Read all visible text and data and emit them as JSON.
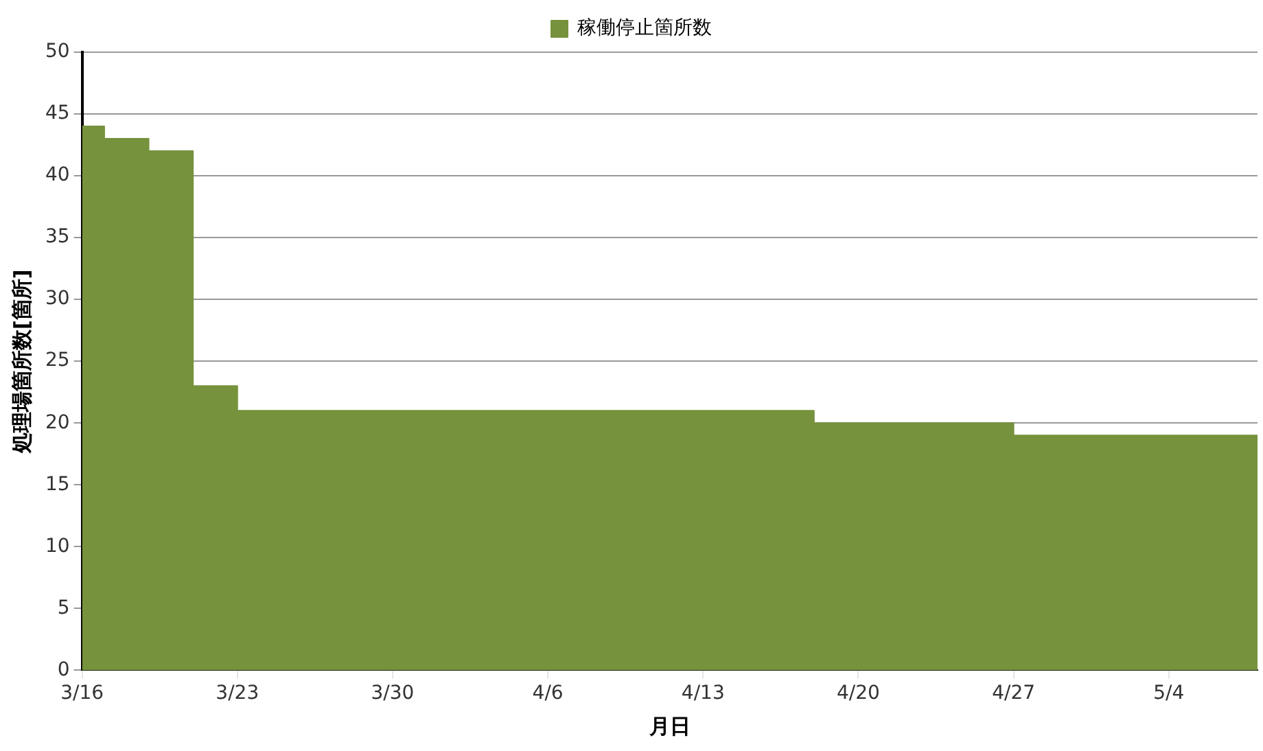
{
  "chart_data": {
    "type": "area",
    "xlabel": "月日",
    "ylabel": "処理場箇所数[箇所]",
    "x": [
      "--03-16",
      "--03-17",
      "--03-17",
      "--03-19",
      "--03-19",
      "--03-21",
      "--03-21",
      "--03-23",
      "--03-23",
      "--04-18",
      "--04-18",
      "--04-27",
      "--04-27",
      "--05-08"
    ],
    "series": [
      {
        "name": "稼働停止箇所数",
        "color": "#76923c",
        "values": [
          44,
          44,
          43,
          43,
          42,
          42,
          23,
          23,
          21,
          21,
          20,
          20,
          19,
          19
        ]
      }
    ],
    "xlim": [
      "--03-16",
      "--05-08"
    ],
    "xticks": [
      {
        "value": "--03-16",
        "label": "3/16"
      },
      {
        "value": "--03-23",
        "label": "3/23"
      },
      {
        "value": "--03-30",
        "label": "3/30"
      },
      {
        "value": "--04-06",
        "label": "4/6"
      },
      {
        "value": "--04-13",
        "label": "4/13"
      },
      {
        "value": "--04-20",
        "label": "4/20"
      },
      {
        "value": "--04-27",
        "label": "4/27"
      },
      {
        "value": "--05-04",
        "label": "5/4"
      }
    ],
    "ylim": [
      0,
      50
    ],
    "yticks": [
      0,
      5,
      10,
      15,
      20,
      25,
      30,
      35,
      40,
      45,
      50
    ],
    "grid": "y",
    "legend": "top",
    "line_style": "solid"
  }
}
